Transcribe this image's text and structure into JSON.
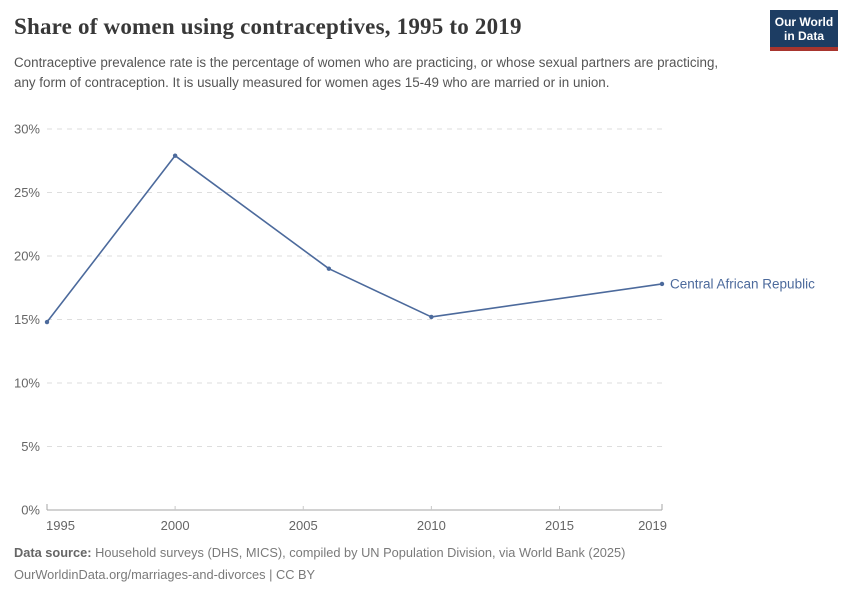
{
  "header": {
    "title": "Share of women using contraceptives, 1995 to 2019",
    "logo": {
      "line1": "Our World",
      "line2": "in Data"
    }
  },
  "subtitle": "Contraceptive prevalence rate is the percentage of women who are practicing, or whose sexual partners are practicing, any form of contraception. It is usually measured for women ages 15-49 who are married or in union.",
  "footer": {
    "source_label": "Data source:",
    "source_text": " Household surveys (DHS, MICS), compiled by UN Population Division, via World Bank (2025)",
    "link_line": "OurWorldinData.org/marriages-and-divorces | CC BY"
  },
  "colors": {
    "line": "#4c6a9c",
    "entity_label": "#4c6a9c",
    "grid": "#dedede",
    "axis": "#a5a5a5",
    "minor_tick": "#c8c8c8",
    "tick_label": "#666666",
    "logo_navy": "#1d3d63",
    "logo_red": "#a8352e"
  },
  "chart_data": {
    "type": "line",
    "title": "Share of women using contraceptives, 1995 to 2019",
    "entity": "Central African Republic",
    "unit": "%",
    "x": [
      1995,
      2000,
      2006,
      2010,
      2019
    ],
    "values": [
      14.8,
      27.9,
      19.0,
      15.2,
      17.8
    ],
    "xlim": [
      1995,
      2019
    ],
    "ylim": [
      0,
      30
    ],
    "y_ticks": [
      0,
      5,
      10,
      15,
      20,
      25,
      30
    ],
    "x_ticks": [
      1995,
      2000,
      2005,
      2010,
      2015,
      2019
    ],
    "grid": true,
    "grid_style": "dashed",
    "legend_position": "end-of-line-label"
  }
}
